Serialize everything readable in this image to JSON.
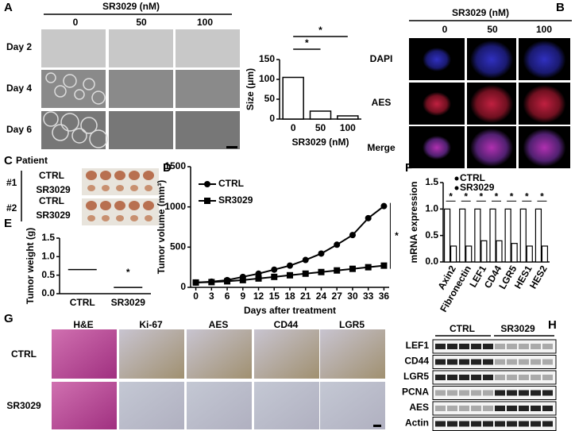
{
  "panel_labels": [
    "A",
    "B",
    "C",
    "D",
    "E",
    "F",
    "G",
    "H"
  ],
  "panel_a": {
    "header": "SR3029 (nM)",
    "columns": [
      "0",
      "50",
      "100"
    ],
    "rows": [
      "Day 2",
      "Day 4",
      "Day 6"
    ]
  },
  "panel_b": {
    "header": "SR3029 (nM)",
    "columns": [
      "0",
      "50",
      "100"
    ],
    "rows": [
      "DAPI",
      "AES",
      "Merge"
    ]
  },
  "panel_c": {
    "title": "Patient",
    "rows": [
      {
        "id": "#1",
        "labels": [
          "CTRL",
          "SR3029"
        ]
      },
      {
        "id": "#2",
        "labels": [
          "CTRL",
          "SR3029"
        ]
      }
    ]
  },
  "panel_g": {
    "columns": [
      "H&E",
      "Ki-67",
      "AES",
      "CD44",
      "LGR5"
    ],
    "rows": [
      "CTRL",
      "SR3029"
    ]
  },
  "panel_h": {
    "groups": [
      "CTRL",
      "SR3029"
    ],
    "rows": [
      "LEF1",
      "CD44",
      "LGR5",
      "PCNA",
      "AES",
      "Actin"
    ]
  },
  "chart_data": [
    {
      "type": "bar",
      "x_label": "SR3029 (nM)",
      "y_label": "Size (μm)",
      "categories": [
        "0",
        "50",
        "100"
      ],
      "values": [
        105,
        20,
        8
      ],
      "color": "#ffffff",
      "ylim": [
        0,
        150
      ],
      "yticks": [
        0,
        50,
        100,
        150
      ],
      "annotations": [
        "*",
        "*"
      ]
    },
    {
      "type": "dot",
      "y_label": "Tumor weight (g)",
      "categories": [
        "CTRL",
        "SR3029"
      ],
      "values": [
        0.65,
        0.17
      ],
      "color": "#000000",
      "ylim": [
        0,
        1.5
      ],
      "yticks": [
        {
          "value": 0,
          "label": "0.0"
        },
        {
          "value": 0.5,
          "label": "0.5"
        },
        {
          "value": 1,
          "label": "1.0"
        },
        {
          "value": 1.5,
          "label": "1.5"
        }
      ],
      "annotations": [
        "*"
      ]
    },
    {
      "type": "line",
      "x_label": "Days after treatment",
      "y_label": "Tumor volume (mm³)",
      "x": [
        0,
        3,
        6,
        9,
        12,
        15,
        18,
        21,
        24,
        27,
        30,
        33,
        36
      ],
      "xlim": [
        -1,
        37
      ],
      "xticks": [
        0,
        3,
        6,
        9,
        12,
        15,
        18,
        21,
        24,
        27,
        30,
        33,
        36
      ],
      "ylim": [
        0,
        1500
      ],
      "yticks": [
        0,
        500,
        1000,
        1500
      ],
      "series": [
        {
          "name": "CTRL",
          "color": "#000000",
          "marker": "circle",
          "values": [
            60,
            70,
            90,
            130,
            170,
            220,
            270,
            340,
            420,
            530,
            650,
            860,
            1010
          ]
        },
        {
          "name": "SR3029",
          "color": "#000000",
          "marker": "square",
          "values": [
            60,
            65,
            75,
            90,
            110,
            130,
            150,
            170,
            190,
            210,
            230,
            250,
            270
          ]
        }
      ],
      "annotations": [
        "*"
      ]
    },
    {
      "type": "grouped-bar",
      "y_label": "mRNA expression",
      "categories": [
        "Axin2",
        "Fibronectin",
        "LEF1",
        "CD44",
        "LGR5",
        "HES1",
        "HES2"
      ],
      "ylim": [
        0,
        1.5
      ],
      "yticks": [
        {
          "value": 0,
          "label": "0.0"
        },
        {
          "value": 0.5,
          "label": "0.5"
        },
        {
          "value": 1,
          "label": "1.0"
        },
        {
          "value": 1.5,
          "label": "1.5"
        }
      ],
      "series": [
        {
          "name": "CTRL",
          "color": "#ffffff",
          "values": [
            1.0,
            1.0,
            1.0,
            1.0,
            1.0,
            1.0,
            1.0
          ]
        },
        {
          "name": "SR3029",
          "color": "#ffffff",
          "values": [
            0.3,
            0.3,
            0.4,
            0.4,
            0.35,
            0.3,
            0.3
          ]
        }
      ],
      "annotations": [
        "*",
        "*",
        "*",
        "*",
        "*",
        "*",
        "*"
      ]
    }
  ]
}
